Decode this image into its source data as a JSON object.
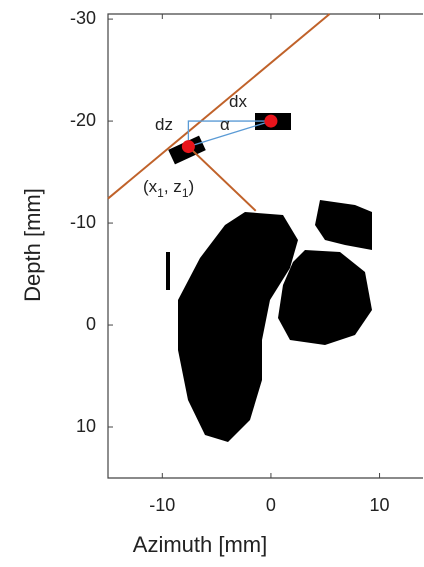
{
  "chart_data": {
    "type": "scatter",
    "x_label": "Azimuth [mm]",
    "y_label": "Depth [mm]",
    "xlim": [
      -15,
      14
    ],
    "ylim": [
      -30.5,
      15
    ],
    "y_reversed": true,
    "xticks": [
      -10,
      0,
      10
    ],
    "yticks": [
      -30,
      -20,
      -10,
      0,
      10
    ],
    "series": [
      {
        "color": "#e8141b",
        "x": [
          0,
          -7.6
        ],
        "values": [
          -20,
          -17.5
        ]
      }
    ],
    "lines": [
      {
        "color": "#c0622a",
        "x": [
          -15,
          5.4
        ],
        "values": [
          -12.4,
          -30.5
        ]
      },
      {
        "color": "#c0622a",
        "x": [
          -7.6,
          -1.4
        ],
        "values": [
          -17.5,
          -11.2
        ]
      },
      {
        "color": "#5b9bd5",
        "x": [
          -7.6,
          -7.6,
          0,
          -7.6
        ],
        "values": [
          -17.5,
          -20,
          -20,
          -17.5
        ]
      }
    ],
    "annotations": [
      [
        "dx"
      ],
      [
        "dz"
      ],
      [
        "α"
      ],
      [
        "(x",
        "1",
        ", z",
        "1",
        ")"
      ]
    ]
  }
}
